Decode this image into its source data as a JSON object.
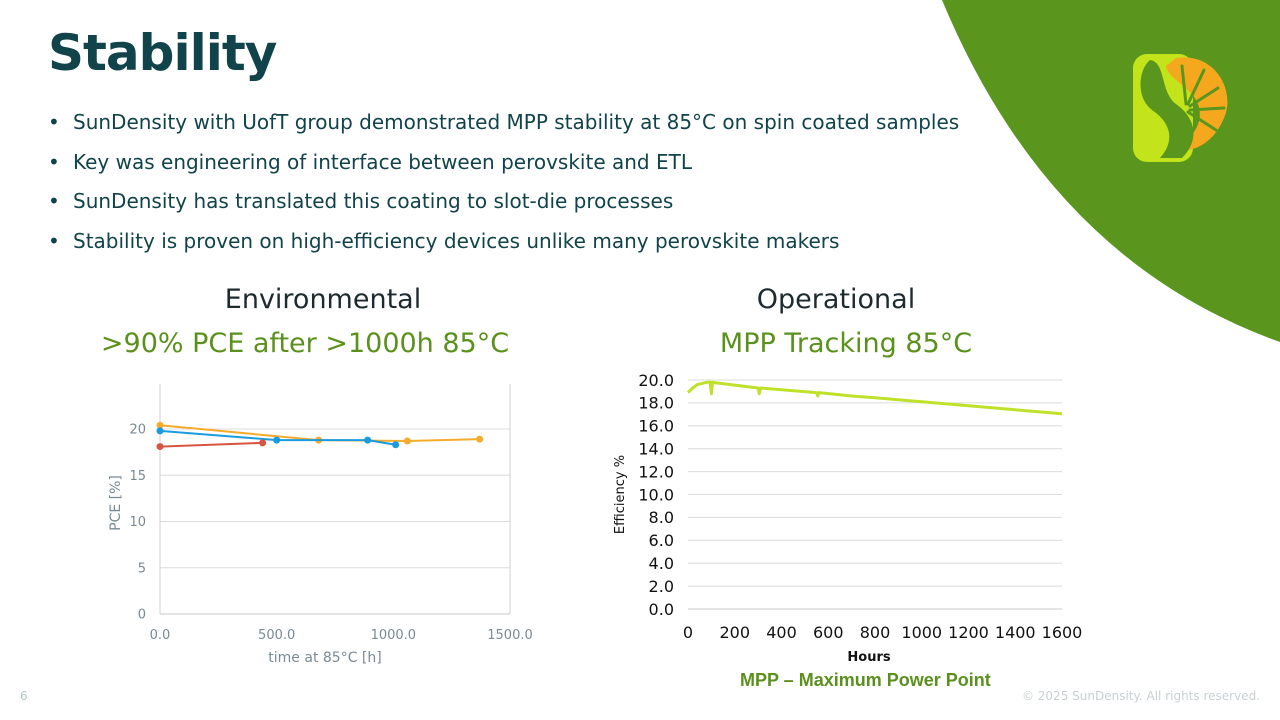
{
  "slide": {
    "title": "Stability",
    "bullets": [
      "SunDensity with UofT group demonstrated MPP stability at 85°C on spin coated samples",
      "Key was engineering of interface between perovskite and ETL",
      "SunDensity has translated this coating to slot-die processes",
      "Stability is proven on high-efficiency devices unlike many perovskite makers"
    ],
    "bullet_symbol": "•",
    "left_heading": "Environmental",
    "left_subheading": ">90% PCE after >1000h 85°C",
    "right_heading": "Operational",
    "right_subheading": "MPP Tracking 85°C",
    "mpp_note": "MPP – Maximum Power Point",
    "page_number": "6",
    "copyright": "© 2025 SunDensity. All rights reserved.",
    "colors": {
      "title": "#10434a",
      "accent_green": "#5a911c",
      "corner_green": "#5a961e",
      "logo_lime": "#c3e41a",
      "logo_orange": "#f5a81d"
    }
  },
  "chart_data": [
    {
      "type": "line",
      "title": "",
      "xlabel": "time at 85°C [h]",
      "ylabel": "PCE [%]",
      "xlim": [
        0,
        1500
      ],
      "ylim": [
        0,
        24
      ],
      "xticks": [
        0,
        500,
        1000,
        1500
      ],
      "xtick_labels": [
        "0.0",
        "500.0",
        "1000.0",
        "1500.0"
      ],
      "yticks": [
        0,
        5,
        10,
        15,
        20
      ],
      "ytick_labels": [
        "0",
        "5",
        "10",
        "15",
        "20"
      ],
      "grid": true,
      "series": [
        {
          "name": "orange",
          "color": "#f5ab2c",
          "x": [
            0,
            680,
            1060,
            1370
          ],
          "y": [
            20.4,
            18.8,
            18.7,
            18.9
          ]
        },
        {
          "name": "blue",
          "color": "#1a9be0",
          "x": [
            0,
            500,
            890,
            1010
          ],
          "y": [
            19.8,
            18.8,
            18.8,
            18.3
          ]
        },
        {
          "name": "red",
          "color": "#d65440",
          "x": [
            0,
            440
          ],
          "y": [
            18.1,
            18.5
          ]
        }
      ]
    },
    {
      "type": "line",
      "title": "",
      "xlabel": "Hours",
      "ylabel": "Efficiency %",
      "xlim": [
        0,
        1600
      ],
      "ylim": [
        0,
        20
      ],
      "xticks": [
        0,
        200,
        400,
        600,
        800,
        1000,
        1200,
        1400,
        1600
      ],
      "xtick_labels": [
        "0",
        "200",
        "400",
        "600",
        "800",
        "1000",
        "1200",
        "1400",
        "1600"
      ],
      "yticks": [
        0,
        2,
        4,
        6,
        8,
        10,
        12,
        14,
        16,
        18,
        20
      ],
      "ytick_labels": [
        "0.0",
        "2.0",
        "4.0",
        "6.0",
        "8.0",
        "10.0",
        "12.0",
        "14.0",
        "16.0",
        "18.0",
        "20.0"
      ],
      "grid": true,
      "series": [
        {
          "name": "MPP efficiency",
          "color": "#c0e12a",
          "x": [
            0,
            20,
            40,
            60,
            80,
            95,
            100,
            105,
            120,
            200,
            300,
            305,
            310,
            400,
            550,
            555,
            560,
            700,
            800,
            1000,
            1200,
            1400,
            1600
          ],
          "y": [
            18.9,
            19.3,
            19.6,
            19.7,
            19.8,
            19.8,
            18.8,
            19.8,
            19.75,
            19.55,
            19.3,
            18.8,
            19.3,
            19.15,
            18.9,
            18.6,
            18.9,
            18.6,
            18.45,
            18.1,
            17.75,
            17.4,
            17.05
          ]
        }
      ]
    }
  ]
}
